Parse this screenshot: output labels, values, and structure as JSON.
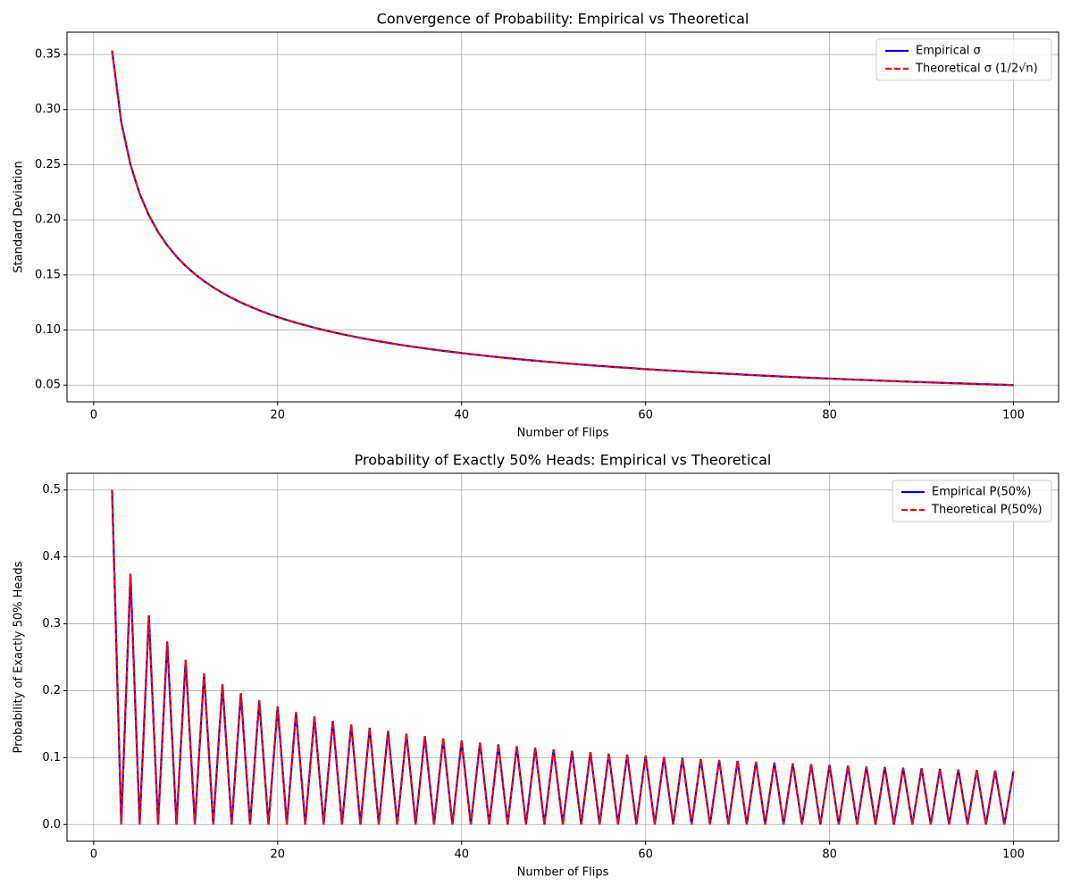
{
  "chart_data": [
    {
      "type": "line",
      "title": "Convergence of Probability: Empirical vs Theoretical",
      "xlabel": "Number of Flips",
      "ylabel": "Standard Deviation",
      "x": [
        2,
        3,
        4,
        5,
        6,
        7,
        8,
        9,
        10,
        11,
        12,
        13,
        14,
        15,
        16,
        17,
        18,
        19,
        20,
        21,
        22,
        23,
        24,
        25,
        26,
        27,
        28,
        29,
        30,
        31,
        32,
        33,
        34,
        35,
        36,
        37,
        38,
        39,
        40,
        41,
        42,
        43,
        44,
        45,
        46,
        47,
        48,
        49,
        50,
        51,
        52,
        53,
        54,
        55,
        56,
        57,
        58,
        59,
        60,
        61,
        62,
        63,
        64,
        65,
        66,
        67,
        68,
        69,
        70,
        71,
        72,
        73,
        74,
        75,
        76,
        77,
        78,
        79,
        80,
        81,
        82,
        83,
        84,
        85,
        86,
        87,
        88,
        89,
        90,
        91,
        92,
        93,
        94,
        95,
        96,
        97,
        98,
        99,
        100
      ],
      "series": [
        {
          "name": "Empirical σ",
          "color": "#0000ff",
          "dash": false,
          "values": [
            0.3536,
            0.2887,
            0.25,
            0.2236,
            0.2041,
            0.189,
            0.1768,
            0.1667,
            0.1581,
            0.1508,
            0.1443,
            0.1387,
            0.1336,
            0.1291,
            0.125,
            0.1213,
            0.1179,
            0.1147,
            0.1118,
            0.1091,
            0.1066,
            0.1043,
            0.1021,
            0.1,
            0.0981,
            0.0962,
            0.0945,
            0.0928,
            0.0913,
            0.0898,
            0.0884,
            0.087,
            0.0857,
            0.0845,
            0.0833,
            0.0822,
            0.0811,
            0.0801,
            0.0791,
            0.0781,
            0.0772,
            0.0762,
            0.0754,
            0.0745,
            0.0737,
            0.0729,
            0.0722,
            0.0714,
            0.0707,
            0.07,
            0.0693,
            0.0687,
            0.068,
            0.0674,
            0.0668,
            0.0662,
            0.0657,
            0.0651,
            0.0645,
            0.064,
            0.0635,
            0.063,
            0.0625,
            0.062,
            0.0615,
            0.0611,
            0.0606,
            0.0602,
            0.0598,
            0.0593,
            0.0589,
            0.0585,
            0.0581,
            0.0577,
            0.0574,
            0.057,
            0.0566,
            0.0563,
            0.0559,
            0.0556,
            0.0552,
            0.0549,
            0.0546,
            0.0542,
            0.0539,
            0.0536,
            0.0533,
            0.053,
            0.0527,
            0.0524,
            0.0521,
            0.0518,
            0.0516,
            0.0513,
            0.051,
            0.0508,
            0.0505,
            0.0503,
            0.05
          ]
        },
        {
          "name": "Theoretical σ (1/2√n)",
          "color": "#ff0000",
          "dash": true,
          "values": [
            0.3536,
            0.2887,
            0.25,
            0.2236,
            0.2041,
            0.189,
            0.1768,
            0.1667,
            0.1581,
            0.1508,
            0.1443,
            0.1387,
            0.1336,
            0.1291,
            0.125,
            0.1213,
            0.1179,
            0.1147,
            0.1118,
            0.1091,
            0.1066,
            0.1043,
            0.1021,
            0.1,
            0.0981,
            0.0962,
            0.0945,
            0.0928,
            0.0913,
            0.0898,
            0.0884,
            0.087,
            0.0857,
            0.0845,
            0.0833,
            0.0822,
            0.0811,
            0.0801,
            0.0791,
            0.0781,
            0.0772,
            0.0762,
            0.0754,
            0.0745,
            0.0737,
            0.0729,
            0.0722,
            0.0714,
            0.0707,
            0.07,
            0.0693,
            0.0687,
            0.068,
            0.0674,
            0.0668,
            0.0662,
            0.0657,
            0.0651,
            0.0645,
            0.064,
            0.0635,
            0.063,
            0.0625,
            0.062,
            0.0615,
            0.0611,
            0.0606,
            0.0602,
            0.0598,
            0.0593,
            0.0589,
            0.0585,
            0.0581,
            0.0577,
            0.0574,
            0.057,
            0.0566,
            0.0563,
            0.0559,
            0.0556,
            0.0552,
            0.0549,
            0.0546,
            0.0542,
            0.0539,
            0.0536,
            0.0533,
            0.053,
            0.0527,
            0.0524,
            0.0521,
            0.0518,
            0.0516,
            0.0513,
            0.051,
            0.0508,
            0.0505,
            0.0503,
            0.05
          ]
        }
      ],
      "xlim": [
        -2.9,
        104.9
      ],
      "xticks": [
        0,
        20,
        40,
        60,
        80,
        100
      ],
      "ylim": [
        0.0348,
        0.3703
      ],
      "yticks": [
        0.05,
        {
          "value": 0.1,
          "label": "0.10"
        },
        0.15,
        {
          "value": 0.2,
          "label": "0.20"
        },
        0.25,
        {
          "value": 0.3,
          "label": "0.30"
        },
        0.35
      ],
      "grid": true,
      "legend": "upper right"
    },
    {
      "type": "line",
      "title": "Probability of Exactly 50% Heads: Empirical vs Theoretical",
      "xlabel": "Number of Flips",
      "ylabel": "Probability of Exactly 50% Heads",
      "x": [
        2,
        3,
        4,
        5,
        6,
        7,
        8,
        9,
        10,
        11,
        12,
        13,
        14,
        15,
        16,
        17,
        18,
        19,
        20,
        21,
        22,
        23,
        24,
        25,
        26,
        27,
        28,
        29,
        30,
        31,
        32,
        33,
        34,
        35,
        36,
        37,
        38,
        39,
        40,
        41,
        42,
        43,
        44,
        45,
        46,
        47,
        48,
        49,
        50,
        51,
        52,
        53,
        54,
        55,
        56,
        57,
        58,
        59,
        60,
        61,
        62,
        63,
        64,
        65,
        66,
        67,
        68,
        69,
        70,
        71,
        72,
        73,
        74,
        75,
        76,
        77,
        78,
        79,
        80,
        81,
        82,
        83,
        84,
        85,
        86,
        87,
        88,
        89,
        90,
        91,
        92,
        93,
        94,
        95,
        96,
        97,
        98,
        99,
        100
      ],
      "series": [
        {
          "name": "Empirical P(50%)",
          "color": "#0000ff",
          "dash": false,
          "values": [
            0.5,
            0,
            0.375,
            0,
            0.3125,
            0,
            0.2734,
            0,
            0.2461,
            0,
            0.2256,
            0,
            0.2095,
            0,
            0.1964,
            0,
            0.1855,
            0,
            0.1762,
            0,
            0.1682,
            0,
            0.1612,
            0,
            0.155,
            0,
            0.1494,
            0,
            0.1445,
            0,
            0.1399,
            0,
            0.1358,
            0,
            0.1321,
            0,
            0.1286,
            0,
            0.1254,
            0,
            0.1224,
            0,
            0.1196,
            0,
            0.117,
            0,
            0.1146,
            0,
            0.1123,
            0,
            0.1101,
            0,
            0.1081,
            0,
            0.1062,
            0,
            0.1044,
            0,
            0.1026,
            0,
            0.101,
            0,
            0.0994,
            0,
            0.0979,
            0,
            0.0965,
            0,
            0.0951,
            0,
            0.0938,
            0,
            0.0925,
            0,
            0.0913,
            0,
            0.0901,
            0,
            0.089,
            0,
            0.0879,
            0,
            0.0868,
            0,
            0.0858,
            0,
            0.0849,
            0,
            0.084,
            0,
            0.0831,
            0,
            0.0822,
            0,
            0.0813,
            0,
            0.0805,
            0,
            0.0796
          ]
        },
        {
          "name": "Theoretical P(50%)",
          "color": "#ff0000",
          "dash": true,
          "values": [
            0.5,
            0,
            0.375,
            0,
            0.3125,
            0,
            0.2734,
            0,
            0.2461,
            0,
            0.2256,
            0,
            0.2095,
            0,
            0.1964,
            0,
            0.1855,
            0,
            0.1762,
            0,
            0.1682,
            0,
            0.1612,
            0,
            0.155,
            0,
            0.1494,
            0,
            0.1445,
            0,
            0.1399,
            0,
            0.1358,
            0,
            0.1321,
            0,
            0.1286,
            0,
            0.1254,
            0,
            0.1224,
            0,
            0.1196,
            0,
            0.117,
            0,
            0.1146,
            0,
            0.1123,
            0,
            0.1101,
            0,
            0.1081,
            0,
            0.1062,
            0,
            0.1044,
            0,
            0.1026,
            0,
            0.101,
            0,
            0.0994,
            0,
            0.0979,
            0,
            0.0965,
            0,
            0.0951,
            0,
            0.0938,
            0,
            0.0925,
            0,
            0.0913,
            0,
            0.0901,
            0,
            0.089,
            0,
            0.0879,
            0,
            0.0868,
            0,
            0.0858,
            0,
            0.0849,
            0,
            0.084,
            0,
            0.0831,
            0,
            0.0822,
            0,
            0.0813,
            0,
            0.0805,
            0,
            0.0796
          ]
        }
      ],
      "xlim": [
        -2.9,
        104.9
      ],
      "xticks": [
        0,
        20,
        40,
        60,
        80,
        100
      ],
      "ylim": [
        -0.025,
        0.525
      ],
      "yticks": [
        {
          "value": 0,
          "label": "0.0"
        },
        0.1,
        0.2,
        0.3,
        0.4,
        0.5
      ],
      "grid": true,
      "legend": "upper right"
    }
  ]
}
